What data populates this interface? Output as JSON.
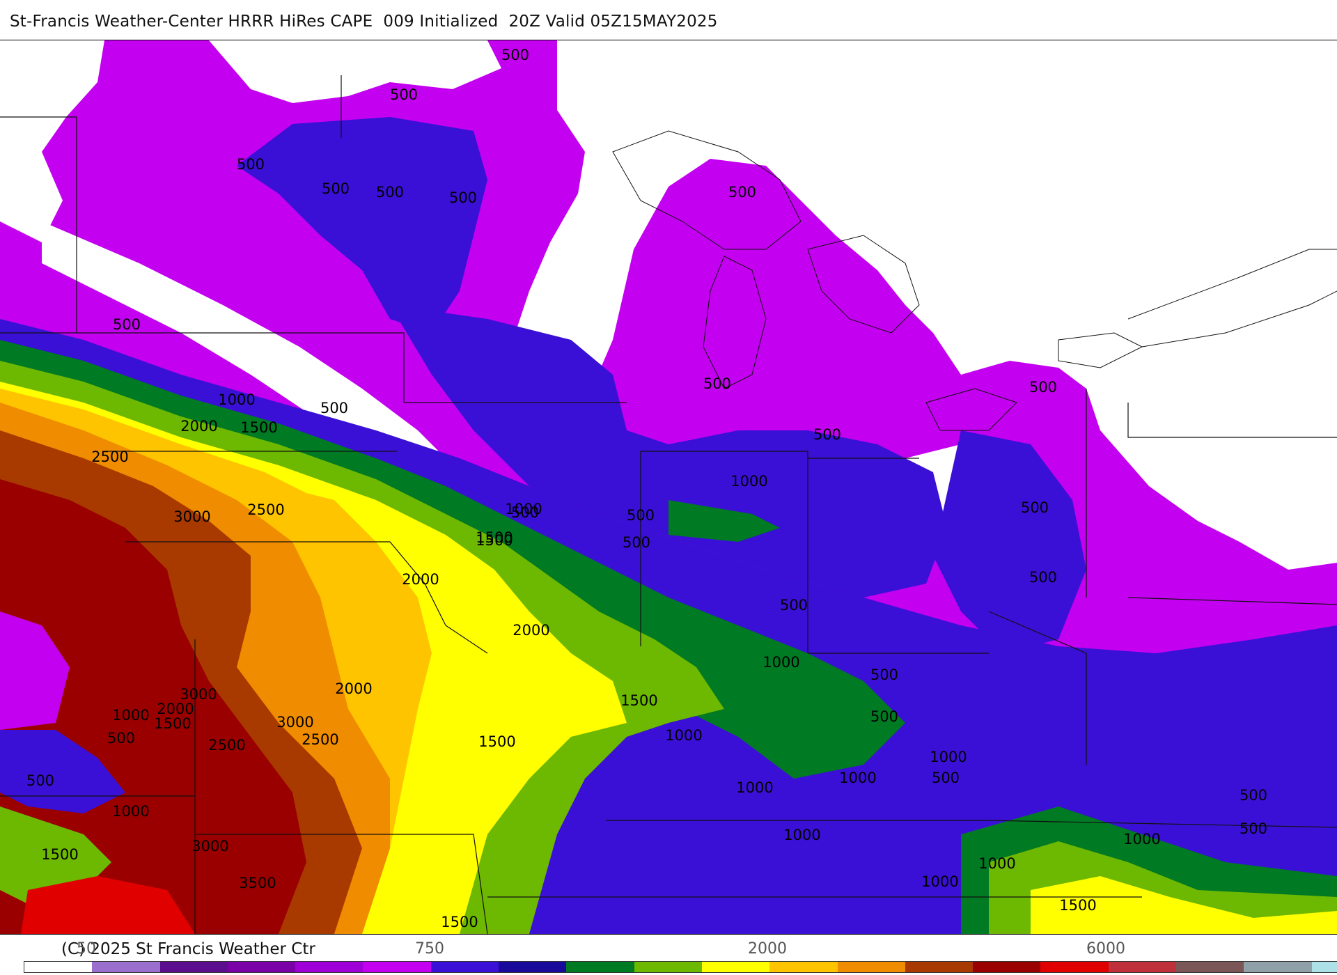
{
  "header": {
    "title": "St-Francis Weather-Center HRRR HiRes CAPE  009 Initialized  20Z Valid 05Z15MAY2025"
  },
  "map": {
    "labels": [
      {
        "text": "500",
        "pos": "north-central"
      },
      {
        "text": "500",
        "pos": "upper-midwest-north"
      },
      {
        "text": "500",
        "pos": "northern-plains"
      },
      {
        "text": "500",
        "pos": "minnesota"
      },
      {
        "text": "500",
        "pos": "minnesota-east"
      },
      {
        "text": "500",
        "pos": "wisconsin"
      },
      {
        "text": "500",
        "pos": "michigan-north"
      },
      {
        "text": "500",
        "pos": "dakotas-south"
      },
      {
        "text": "1000",
        "pos": "nebraska-north"
      },
      {
        "text": "500",
        "pos": "iowa-north"
      },
      {
        "text": "2000",
        "pos": "nebraska"
      },
      {
        "text": "1500",
        "pos": "nebraska-east"
      },
      {
        "text": "2500",
        "pos": "nebraska-west"
      },
      {
        "text": "3000",
        "pos": "kansas-north"
      },
      {
        "text": "2500",
        "pos": "kansas-east"
      },
      {
        "text": "500",
        "pos": "illinois-north"
      },
      {
        "text": "1000",
        "pos": "iowa-east"
      },
      {
        "text": "1500",
        "pos": "iowa-south"
      },
      {
        "text": "500",
        "pos": "illinois-west"
      },
      {
        "text": "500",
        "pos": "illinois-central"
      },
      {
        "text": "500",
        "pos": "michigan-south"
      },
      {
        "text": "1000",
        "pos": "indiana"
      },
      {
        "text": "500",
        "pos": "ohio-north"
      },
      {
        "text": "500",
        "pos": "ontario-south"
      },
      {
        "text": "500",
        "pos": "pennsylvania-north"
      },
      {
        "text": "2000",
        "pos": "missouri-north"
      },
      {
        "text": "1500",
        "pos": "illinois-south"
      },
      {
        "text": "500",
        "pos": "new-york"
      },
      {
        "text": "500",
        "pos": "ohio-south"
      },
      {
        "text": "2000",
        "pos": "missouri"
      },
      {
        "text": "1000",
        "pos": "kentucky-north"
      },
      {
        "text": "500",
        "pos": "west-virginia"
      },
      {
        "text": "2000",
        "pos": "kansas-south"
      },
      {
        "text": "3000",
        "pos": "oklahoma-north"
      },
      {
        "text": "2000",
        "pos": "oklahoma-west"
      },
      {
        "text": "1000",
        "pos": "texas-panhandle"
      },
      {
        "text": "1500",
        "pos": "texas-panhandle-east"
      },
      {
        "text": "1500",
        "pos": "kentucky-west"
      },
      {
        "text": "3000",
        "pos": "oklahoma"
      },
      {
        "text": "1000",
        "pos": "kentucky"
      },
      {
        "text": "500",
        "pos": "virginia-north"
      },
      {
        "text": "500",
        "pos": "new-mexico-north"
      },
      {
        "text": "2500",
        "pos": "oklahoma-panhandle"
      },
      {
        "text": "2500",
        "pos": "oklahoma-east"
      },
      {
        "text": "1500",
        "pos": "tennessee-west"
      },
      {
        "text": "1000",
        "pos": "virginia"
      },
      {
        "text": "500",
        "pos": "maryland"
      },
      {
        "text": "500",
        "pos": "new-mexico"
      },
      {
        "text": "1000",
        "pos": "tennessee"
      },
      {
        "text": "1000",
        "pos": "virginia-south"
      },
      {
        "text": "500",
        "pos": "delaware"
      },
      {
        "text": "1000",
        "pos": "texas-north"
      },
      {
        "text": "3000",
        "pos": "texas-north-central"
      },
      {
        "text": "1000",
        "pos": "tennessee-east"
      },
      {
        "text": "500",
        "pos": "atlantic"
      },
      {
        "text": "1500",
        "pos": "texas-west"
      },
      {
        "text": "1000",
        "pos": "north-carolina"
      },
      {
        "text": "1000",
        "pos": "carolina-west"
      },
      {
        "text": "1000",
        "pos": "carolina"
      },
      {
        "text": "3500",
        "pos": "texas"
      },
      {
        "text": "1500",
        "pos": "carolina-south"
      },
      {
        "text": "1500",
        "pos": "mississippi-north"
      }
    ]
  },
  "legend": {
    "colors": [
      "#ffffff",
      "#9b6fce",
      "#5b0f8f",
      "#7a00a8",
      "#a000d8",
      "#c400f0",
      "#3a10d6",
      "#1a0a9c",
      "#007a23",
      "#6db800",
      "#ffff00",
      "#ffc400",
      "#f08c00",
      "#a83a00",
      "#9b0000",
      "#e00000",
      "#c0303a",
      "#7b5656",
      "#8fa0a8",
      "#aee0e8"
    ],
    "tick_labels": [
      "50",
      "750",
      "2000",
      "6000"
    ],
    "copyright": "(C) 2025 St Francis Weather Ctr"
  }
}
